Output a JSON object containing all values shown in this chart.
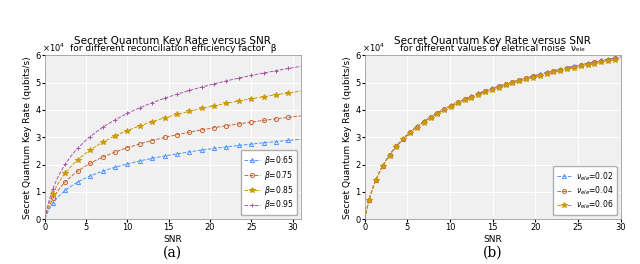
{
  "title_a": "Secret Quantum Key Rate versus SNR",
  "subtitle_a": "for different reconciliation efficiency factor  β",
  "title_b": "Secret Quantum Key Rate versus SNR",
  "subtitle_b": "for different values of eletrical noise  νₑₗₑ",
  "xlabel": "SNR",
  "ylabel": "Secret Quantum Key Rate (qubits/s)",
  "label_a": "(a)",
  "label_b": "(b)",
  "ylim_a": [
    0,
    60000.0
  ],
  "ylim_b": [
    0,
    60000.0
  ],
  "xlim_a": [
    0,
    31
  ],
  "xlim_b": [
    0,
    30
  ],
  "yticks": [
    0,
    10000,
    20000,
    30000,
    40000,
    50000,
    60000
  ],
  "xticks_a": [
    0,
    5,
    10,
    15,
    20,
    25,
    30
  ],
  "xticks_b": [
    0,
    5,
    10,
    15,
    20,
    25,
    30
  ],
  "beta_values": [
    0.65,
    0.75,
    0.85,
    0.95
  ],
  "beta_colors": [
    "#4d94ff",
    "#cc6633",
    "#cc9900",
    "#aa55aa"
  ],
  "beta_markers": [
    "^",
    "o",
    "*",
    "+"
  ],
  "nu_ele_values": [
    0.02,
    0.04,
    0.06
  ],
  "nu_ele_colors": [
    "#4d94ff",
    "#cc6633",
    "#cc9900"
  ],
  "nu_ele_markers": [
    "^",
    "o",
    "*"
  ],
  "bg_color": "#f0f0f0",
  "grid_color": "#ffffff",
  "title_fontsize": 7.5,
  "subtitle_fontsize": 6.5,
  "axis_label_fontsize": 6.5,
  "tick_fontsize": 6,
  "legend_fontsize": 5.5,
  "sublabel_fontsize": 10
}
